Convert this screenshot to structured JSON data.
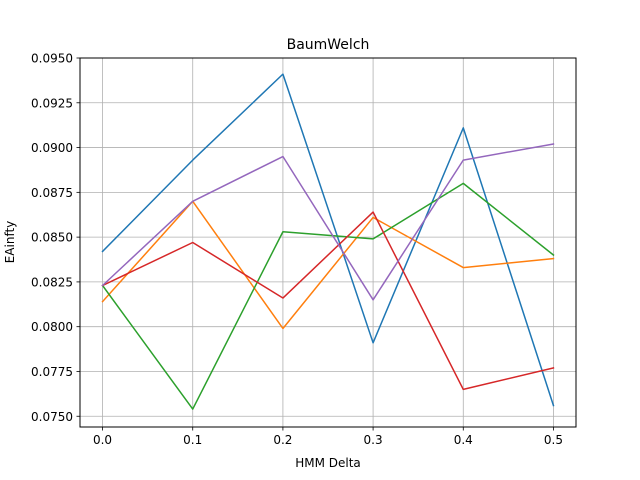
{
  "chart_data": {
    "type": "line",
    "title": "BaumWelch",
    "xlabel": "HMM Delta",
    "ylabel": "EAinfty",
    "x": [
      0.0,
      0.1,
      0.2,
      0.3,
      0.4,
      0.5
    ],
    "xlim": [
      -0.025,
      0.525
    ],
    "ylim": [
      0.0744,
      0.095
    ],
    "xticks": [
      "0.0",
      "0.1",
      "0.2",
      "0.3",
      "0.4",
      "0.5"
    ],
    "yticks": [
      "0.0750",
      "0.0775",
      "0.0800",
      "0.0825",
      "0.0850",
      "0.0875",
      "0.0900",
      "0.0925",
      "0.0950"
    ],
    "grid": true,
    "series": [
      {
        "color": "#1f77b4",
        "values": [
          0.0842,
          0.0893,
          0.0941,
          0.0791,
          0.0911,
          0.0756
        ]
      },
      {
        "color": "#ff7f0e",
        "values": [
          0.0814,
          0.087,
          0.0799,
          0.0861,
          0.0833,
          0.0838
        ]
      },
      {
        "color": "#2ca02c",
        "values": [
          0.0823,
          0.0754,
          0.0853,
          0.0849,
          0.088,
          0.084
        ]
      },
      {
        "color": "#d62728",
        "values": [
          0.0823,
          0.0847,
          0.0816,
          0.0864,
          0.0765,
          0.0777
        ]
      },
      {
        "color": "#9467bd",
        "values": [
          0.0823,
          0.087,
          0.0895,
          0.0815,
          0.0893,
          0.0902
        ]
      }
    ]
  }
}
